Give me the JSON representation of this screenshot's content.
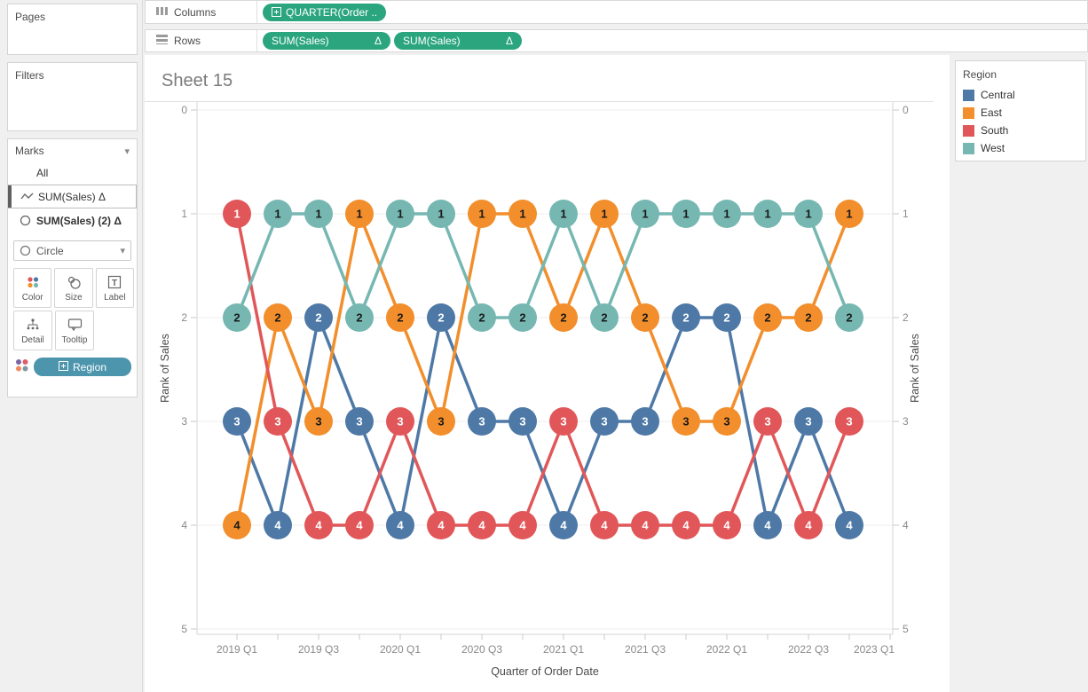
{
  "shelves": {
    "columns": {
      "label": "Columns",
      "pills": [
        {
          "text": "QUARTER(Order ..",
          "expand_icon": true
        }
      ]
    },
    "rows": {
      "label": "Rows",
      "pills": [
        {
          "text": "SUM(Sales)",
          "delta": "Δ"
        },
        {
          "text": "SUM(Sales)",
          "delta": "Δ"
        }
      ]
    },
    "pill_color": "#2ba57e"
  },
  "sidebar": {
    "pages_label": "Pages",
    "filters_label": "Filters",
    "marks": {
      "title": "Marks",
      "rows": [
        {
          "label": "All",
          "icon": "none",
          "selected": false,
          "bold": false
        },
        {
          "label": "SUM(Sales) Δ",
          "icon": "line",
          "selected": true,
          "bold": false
        },
        {
          "label": "SUM(Sales) (2) Δ",
          "icon": "circle",
          "selected": false,
          "bold": true
        }
      ],
      "mark_type": "Circle",
      "buttons": [
        [
          "Color",
          "Size",
          "Label"
        ],
        [
          "Detail",
          "Tooltip"
        ]
      ],
      "region_pill_label": "Region",
      "region_pill_color": "#4c95ad"
    }
  },
  "sheet": {
    "title": "Sheet 15"
  },
  "legend": {
    "title": "Region",
    "items": [
      {
        "label": "Central",
        "color": "#4e79a7"
      },
      {
        "label": "East",
        "color": "#f28e2b"
      },
      {
        "label": "South",
        "color": "#e15759"
      },
      {
        "label": "West",
        "color": "#76b7b2"
      }
    ]
  },
  "chart_data": {
    "type": "line",
    "title": "Sheet 15",
    "xlabel": "Quarter of Order Date",
    "ylabel_left": "Rank of Sales",
    "ylabel_right": "Rank of Sales",
    "x": [
      "2019 Q1",
      "2019 Q2",
      "2019 Q3",
      "2019 Q4",
      "2020 Q1",
      "2020 Q2",
      "2020 Q3",
      "2020 Q4",
      "2021 Q1",
      "2021 Q2",
      "2021 Q3",
      "2021 Q4",
      "2022 Q1",
      "2022 Q2",
      "2022 Q3",
      "2022 Q4"
    ],
    "x_axis_tick_labels": [
      "2019 Q1",
      "2019 Q3",
      "2020 Q1",
      "2020 Q3",
      "2021 Q1",
      "2021 Q3",
      "2022 Q1",
      "2022 Q3",
      "2023 Q1"
    ],
    "x_axis_tick_label_indices": [
      0,
      2,
      4,
      6,
      8,
      10,
      12,
      14,
      16
    ],
    "y_axis": {
      "min": 0,
      "max": 5,
      "reversed": true,
      "ticks": [
        0,
        1,
        2,
        3,
        4,
        5
      ],
      "dual": true
    },
    "grid": "horizontal",
    "legend_position": "right",
    "series": [
      {
        "name": "Central",
        "color": "#4e79a7",
        "label_text_color": "#ffffff",
        "ranks": [
          3,
          4,
          2,
          3,
          4,
          2,
          3,
          3,
          4,
          3,
          3,
          2,
          2,
          4,
          3,
          4
        ]
      },
      {
        "name": "East",
        "color": "#f28e2b",
        "label_text_color": "#1a1a1a",
        "ranks": [
          4,
          2,
          3,
          1,
          2,
          3,
          1,
          1,
          2,
          1,
          2,
          3,
          3,
          2,
          2,
          1
        ]
      },
      {
        "name": "South",
        "color": "#e15759",
        "label_text_color": "#ffffff",
        "ranks": [
          1,
          3,
          4,
          4,
          3,
          4,
          4,
          4,
          3,
          4,
          4,
          4,
          4,
          3,
          4,
          3
        ]
      },
      {
        "name": "West",
        "color": "#76b7b2",
        "label_text_color": "#1a1a1a",
        "ranks": [
          2,
          1,
          1,
          2,
          1,
          1,
          2,
          2,
          1,
          2,
          1,
          1,
          1,
          1,
          1,
          2
        ]
      }
    ]
  },
  "icons": {
    "color_button_dots": [
      "#e15759",
      "#4e79a7",
      "#f28e2b",
      "#76b7b2"
    ],
    "region_indicator_dots": [
      "#7b66a3",
      "#e05c69",
      "#ef8a5e",
      "#7f98a5"
    ]
  }
}
